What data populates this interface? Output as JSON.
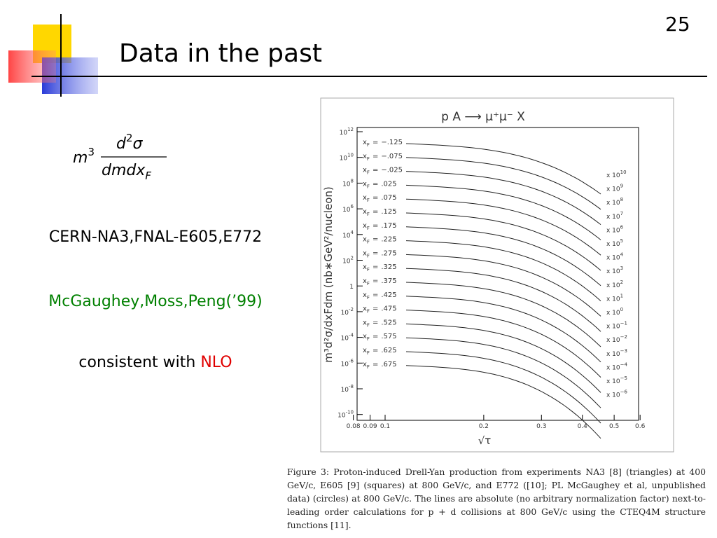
{
  "slide_number": "25",
  "title": "Data in the past",
  "formula": {
    "base": "m",
    "power": "3",
    "num_d": "d",
    "num_power": "2",
    "num_sigma": "σ",
    "den": "dmdx",
    "den_sub": "F"
  },
  "bullets": [
    {
      "text": "CERN-NA3,FNAL-E605,E772",
      "color": "#000000"
    },
    {
      "text": "McGaughey,Moss,Peng(’99)",
      "color": "#008000"
    },
    {
      "text": "consistent with ",
      "highlight": "NLO",
      "color": "#000000",
      "highlight_color": "#e00000"
    }
  ],
  "figure": {
    "title": "p A ⟶ μ⁺μ⁻ X",
    "y_label": "m³d²σ/dxFdm (nb∗GeV²/nucleon)",
    "x_label": "√τ",
    "x_ticks": [
      0.08,
      0.09,
      0.1,
      0.2,
      0.3,
      0.4,
      0.5,
      0.6
    ],
    "y_ticks": [
      {
        "base": "10",
        "exp": "12"
      },
      {
        "base": "10",
        "exp": "10"
      },
      {
        "base": "10",
        "exp": "8"
      },
      {
        "base": "10",
        "exp": "6"
      },
      {
        "base": "10",
        "exp": "4"
      },
      {
        "base": "10",
        "exp": "2"
      },
      {
        "base": "1"
      },
      {
        "base": "10",
        "exp": "-2"
      },
      {
        "base": "10",
        "exp": "-4"
      },
      {
        "base": "10",
        "exp": "-6"
      },
      {
        "base": "10",
        "exp": "-8"
      },
      {
        "base": "10",
        "exp": "-10"
      }
    ],
    "legend_prefix": "x",
    "legend_sub": "F",
    "legend_eq": "=",
    "legend_values": [
      "−.125",
      "−.075",
      "−.025",
      ".025",
      ".075",
      ".125",
      ".175",
      ".225",
      ".275",
      ".325",
      ".375",
      ".425",
      ".475",
      ".525",
      ".575",
      ".625",
      ".675"
    ],
    "scale_prefix": "x 10",
    "scale_exps": [
      "10",
      "9",
      "8",
      "7",
      "6",
      "5",
      "4",
      "3",
      "2",
      "1",
      "0",
      "−1",
      "−2",
      "−3",
      "−4",
      "−5",
      "−6"
    ]
  },
  "caption": "Figure 3: Proton-induced Drell-Yan production from experiments NA3 [8] (triangles) at 400 GeV/c, E605 [9] (squares) at 800 GeV/c, and E772 ([10]; PL McGaughey et al, unpublished data) (circles) at 800 GeV/c. The lines are absolute (no arbitrary normalization factor) next-to-leading order calculations for p + d collisions at 800 GeV/c using the CTEQ4M structure functions [11]."
}
